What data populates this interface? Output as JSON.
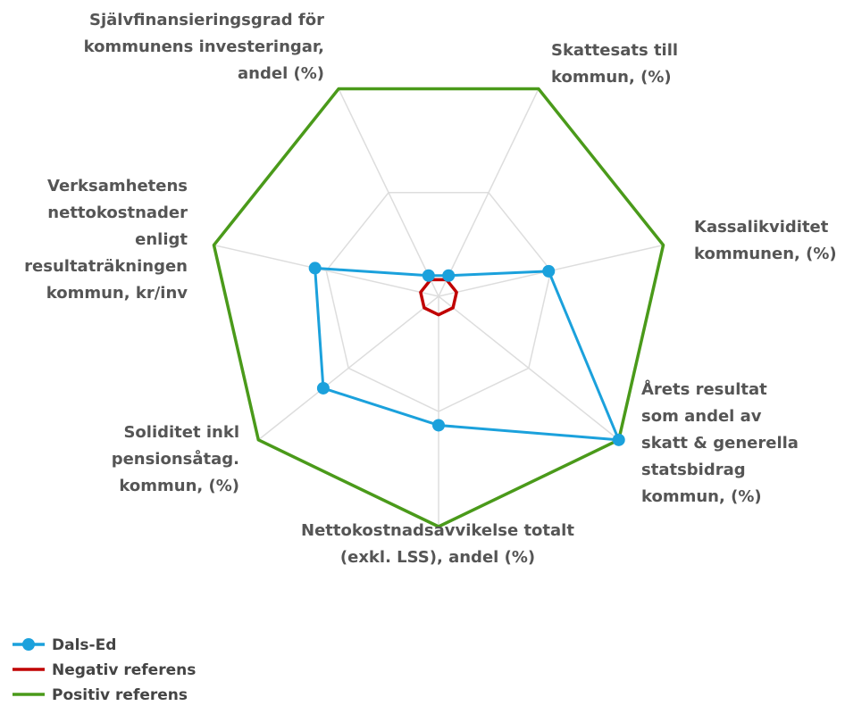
{
  "chart_data": {
    "type": "radar",
    "categories": [
      "Självfinansieringsgrad för kommunens investeringar, andel (%)",
      "Skattesats till kommun, (%)",
      "Kassalikviditet kommunen, (%)",
      "Årets resultat som andel av skatt & generella statsbidrag kommun, (%)",
      "Nettokostnadsavvikelse totalt (exkl. LSS), andel (%)",
      "Soliditet inkl pensionsåtag. kommun, (%)",
      "Verksamhetens nettokostnader enligt resultaträkningen kommun, kr/inv"
    ],
    "series": [
      {
        "name": "Dals-Ed",
        "color": "#1ba1dc",
        "values": [
          10,
          10,
          49,
          100,
          56,
          64,
          55
        ]
      },
      {
        "name": "Negativ referens",
        "color": "#c00000",
        "values": [
          8,
          8,
          8,
          8,
          8,
          8,
          8
        ]
      },
      {
        "name": "Positiv referens",
        "color": "#4a9a1a",
        "values": [
          100,
          100,
          100,
          100,
          100,
          100,
          100
        ]
      }
    ],
    "ylim": [
      0,
      100
    ],
    "yticks": [
      50,
      100
    ],
    "grid": true,
    "legend": "bottom-left"
  }
}
